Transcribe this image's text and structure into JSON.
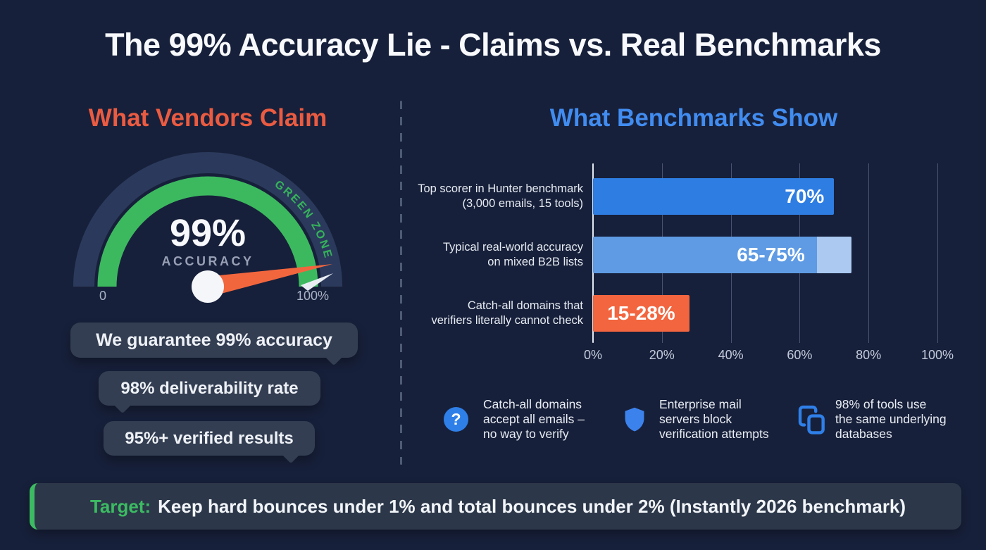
{
  "title": "The 99% Accuracy Lie - Claims vs. Real Benchmarks",
  "vendors": {
    "heading": "What Vendors Claim",
    "gauge": {
      "value": "99%",
      "value_caption": "ACCURACY",
      "zone_label": "GREEN ZONE",
      "scale_min": "0",
      "scale_max": "100%"
    },
    "claims": [
      {
        "text": "We guarantee 99% accuracy"
      },
      {
        "text": "98% deliverability rate"
      },
      {
        "text": "95%+ verified results"
      }
    ]
  },
  "benchmarks": {
    "heading": "What Benchmarks Show",
    "notes": [
      {
        "icon": "question-icon",
        "glyph": "?",
        "lines": [
          "Catch-all domains",
          "accept all emails –",
          "no way to verify"
        ]
      },
      {
        "icon": "shield-icon",
        "lines": [
          "Enterprise mail",
          "servers block",
          "verification attempts"
        ]
      },
      {
        "icon": "copy-icon",
        "lines": [
          "98% of tools use",
          "the same underlying",
          "databases"
        ]
      }
    ]
  },
  "chart_data": {
    "type": "bar",
    "orientation": "horizontal",
    "title": "What Benchmarks Show",
    "xlabel": "",
    "ylabel": "",
    "xlim": [
      0,
      100
    ],
    "x_ticks": [
      "0%",
      "20%",
      "40%",
      "60%",
      "80%",
      "100%"
    ],
    "grid": true,
    "bars": [
      {
        "label_lines": [
          "Top scorer in Hunter benchmark",
          "(3,000 emails, 15 tools)"
        ],
        "category": "Top scorer in Hunter benchmark (3,000 emails, 15 tools)",
        "value": 70,
        "value_label": "70%",
        "color": "#2e7de2"
      },
      {
        "label_lines": [
          "Typical real-world accuracy",
          "on mixed B2B lists"
        ],
        "category": "Typical real-world accuracy on mixed B2B lists",
        "value_low": 65,
        "value_high": 75,
        "value_label": "65-75%",
        "color": "#5f9be4",
        "highlight_color": "#abc9f1"
      },
      {
        "label_lines": [
          "Catch-all domains that",
          "verifiers literally cannot check"
        ],
        "category": "Catch-all domains that verifiers literally cannot check",
        "value_low": 15,
        "value_high": 28,
        "value_label": "15-28%",
        "color": "#f2653f"
      }
    ]
  },
  "target_banner": {
    "prefix": "Target:",
    "text": "Keep hard bounces under 1% and total bounces under 2% (Instantly 2026 benchmark)"
  },
  "colors": {
    "background": "#17203a",
    "claim_accent": "#ea5b41",
    "benchmark_accent": "#418cf0",
    "success_green": "#3cb95f",
    "needle_orange": "#f2663e",
    "bar_blue": "#2e7de2",
    "bar_light_blue": "#5f9be4",
    "bar_orange": "#f2653f",
    "icon_blue": "#2f7fe8",
    "bubble_bg": "#333e52",
    "banner_bg": "#2c3849"
  }
}
